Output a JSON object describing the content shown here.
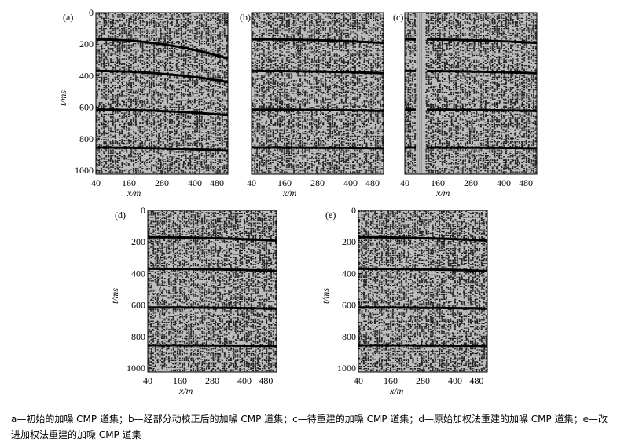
{
  "chart_data": [
    {
      "type": "seismic-gather",
      "panel_label": "(a)",
      "xlabel": "x/m",
      "ylabel": "t/ms",
      "x_ticks": [
        40,
        160,
        280,
        400,
        480
      ],
      "y_ticks": [
        0,
        200,
        400,
        600,
        800,
        1000
      ],
      "xlim": [
        40,
        520
      ],
      "ylim": [
        0,
        1024
      ],
      "nmo_corrected": false,
      "missing_traces": false,
      "events_ms": [
        170,
        370,
        615,
        855
      ],
      "event_moveout_ms_at_far_offset": [
        120,
        70,
        35,
        20
      ]
    },
    {
      "type": "seismic-gather",
      "panel_label": "(b)",
      "xlabel": "x/m",
      "ylabel": "",
      "x_ticks": [
        40,
        160,
        280,
        400,
        480
      ],
      "y_ticks": [],
      "xlim": [
        40,
        520
      ],
      "ylim": [
        0,
        1024
      ],
      "nmo_corrected": true,
      "missing_traces": false,
      "events_ms": [
        170,
        370,
        615,
        855
      ],
      "event_moveout_ms_at_far_offset": [
        22,
        14,
        8,
        4
      ]
    },
    {
      "type": "seismic-gather",
      "panel_label": "(c)",
      "xlabel": "x/m",
      "ylabel": "",
      "x_ticks": [
        40,
        160,
        280,
        400,
        480
      ],
      "y_ticks": [],
      "xlim": [
        40,
        520
      ],
      "ylim": [
        0,
        1024
      ],
      "nmo_corrected": true,
      "missing_traces": true,
      "missing_x_range": [
        85,
        115
      ],
      "events_ms": [
        170,
        370,
        615,
        855
      ],
      "event_moveout_ms_at_far_offset": [
        22,
        14,
        8,
        4
      ]
    },
    {
      "type": "seismic-gather",
      "panel_label": "(d)",
      "xlabel": "x/m",
      "ylabel": "t/ms",
      "x_ticks": [
        40,
        160,
        280,
        400,
        480
      ],
      "y_ticks": [
        0,
        200,
        400,
        600,
        800,
        1000
      ],
      "xlim": [
        40,
        520
      ],
      "ylim": [
        0,
        1024
      ],
      "nmo_corrected": true,
      "missing_traces": false,
      "events_ms": [
        170,
        370,
        615,
        855
      ],
      "event_moveout_ms_at_far_offset": [
        22,
        14,
        8,
        4
      ]
    },
    {
      "type": "seismic-gather",
      "panel_label": "(e)",
      "xlabel": "x/m",
      "ylabel": "t/ms",
      "x_ticks": [
        40,
        160,
        280,
        400,
        480
      ],
      "y_ticks": [
        0,
        200,
        400,
        600,
        800,
        1000
      ],
      "xlim": [
        40,
        520
      ],
      "ylim": [
        0,
        1024
      ],
      "nmo_corrected": true,
      "missing_traces": false,
      "events_ms": [
        170,
        370,
        615,
        855
      ],
      "event_moveout_ms_at_far_offset": [
        22,
        14,
        8,
        4
      ]
    }
  ],
  "caption": {
    "line1": "a—初始的加噪 CMP 道集；b—经部分动校正后的加噪 CMP 道集；c—待重建的加噪 CMP 道集；d—原始加权法重建的加噪 CMP 道集；e—改",
    "line2": "进加权法重建的加噪 CMP 道集"
  }
}
